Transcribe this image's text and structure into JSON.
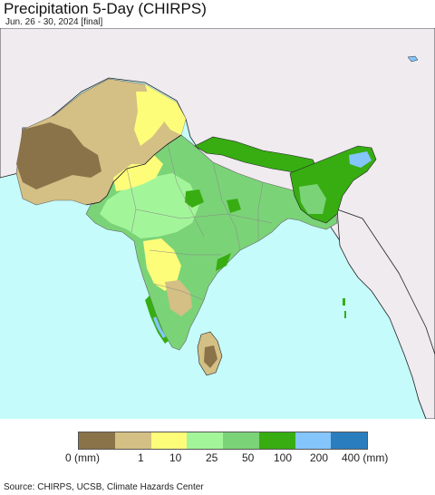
{
  "header": {
    "title": "Precipitation 5-Day (CHIRPS)",
    "subtitle": "Jun. 26 - 30, 2024 [final]"
  },
  "legend": {
    "colors": [
      "#8b7349",
      "#d4bf84",
      "#fdfd7a",
      "#a3f59a",
      "#7bd378",
      "#37ad12",
      "#84c5fc",
      "#2b7ebe"
    ],
    "labels": [
      "0 (mm)",
      "1",
      "10",
      "25",
      "50",
      "100",
      "200",
      "400 (mm)"
    ]
  },
  "map": {
    "ocean_color": "#c5fbfb",
    "land_outside_color": "#efebef",
    "border_color": "#222222"
  },
  "footer": {
    "source": "Source: CHIRPS, UCSB, Climate Hazards Center"
  }
}
